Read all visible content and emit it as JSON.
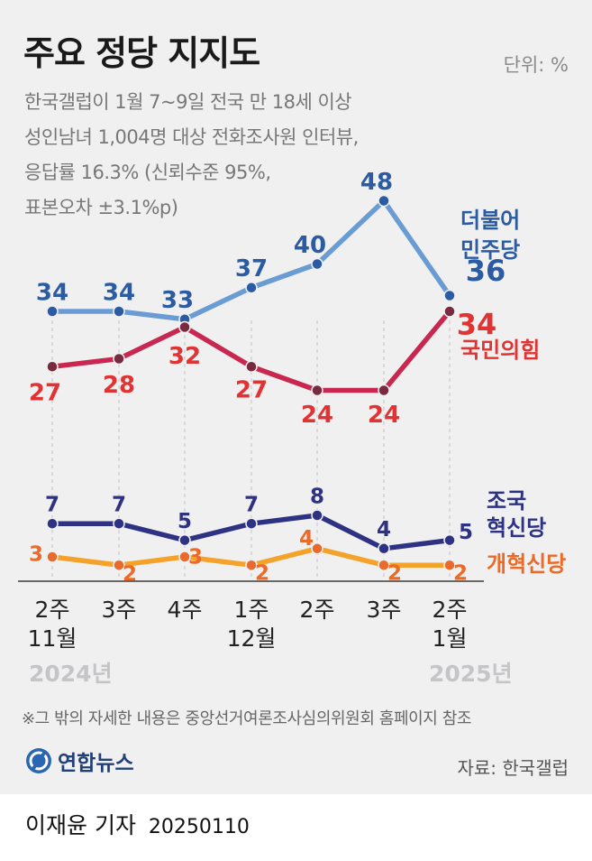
{
  "header": {
    "title": "주요 정당 지지도",
    "unit": "단위: %",
    "notes": [
      "한국갤럽이 1월 7~9일 전국 만 18세 이상",
      "성인남녀 1,004명 대상 전화조사원 인터뷰,",
      "응답률 16.3% (신뢰수준 95%,",
      "표본오차 ±3.1%p)"
    ]
  },
  "chart_data": {
    "type": "line",
    "title": "주요 정당 지지도",
    "ylabel": "단위: %",
    "categories": [
      "2주 11월",
      "3주",
      "4주",
      "1주 12월",
      "2주",
      "3주",
      "2주 1월"
    ],
    "x_labels": [
      [
        "2주",
        "11월"
      ],
      [
        "3주",
        ""
      ],
      [
        "4주",
        ""
      ],
      [
        "1주",
        "12월"
      ],
      [
        "2주",
        ""
      ],
      [
        "3주",
        ""
      ],
      [
        "2주",
        "1월"
      ]
    ],
    "year_labels": [
      "2024년",
      "2025년"
    ],
    "series": [
      {
        "name": "더불어민주당",
        "label_lines": [
          "더불어",
          "민주당"
        ],
        "values": [
          34,
          34,
          33,
          37,
          40,
          48,
          36
        ],
        "color": "#6a9bd3",
        "marker": "#2b5ba3",
        "label_color": "#2b5ba3",
        "value_color": "#2b5ba3"
      },
      {
        "name": "국민의힘",
        "label_lines": [
          "국민의힘"
        ],
        "values": [
          27,
          28,
          32,
          27,
          24,
          24,
          34
        ],
        "color": "#c8284f",
        "marker": "#7a2a3e",
        "label_color": "#e03333",
        "value_color": "#e03333"
      },
      {
        "name": "조국혁신당",
        "label_lines": [
          "조국",
          "혁신당"
        ],
        "values": [
          7,
          7,
          5,
          7,
          8,
          4,
          5
        ],
        "color": "#2e3282",
        "marker": "#2e3282",
        "label_color": "#2e3282",
        "value_color": "#2e3282"
      },
      {
        "name": "개혁신당",
        "label_lines": [
          "개혁신당"
        ],
        "values": [
          3,
          2,
          3,
          2,
          4,
          2,
          2
        ],
        "color": "#f5a22a",
        "marker": "#e86a2c",
        "label_color": "#ec6a28",
        "value_color": "#ec6a28"
      }
    ]
  },
  "footer": {
    "footnote": "※그 밖의 자세한 내용은 중앙선거여론조사심의위원회 홈페이지 참조",
    "logo": "연합뉴스",
    "source": "자료: 한국갤럽",
    "reporter": "이재윤 기자",
    "date": "20250110"
  }
}
